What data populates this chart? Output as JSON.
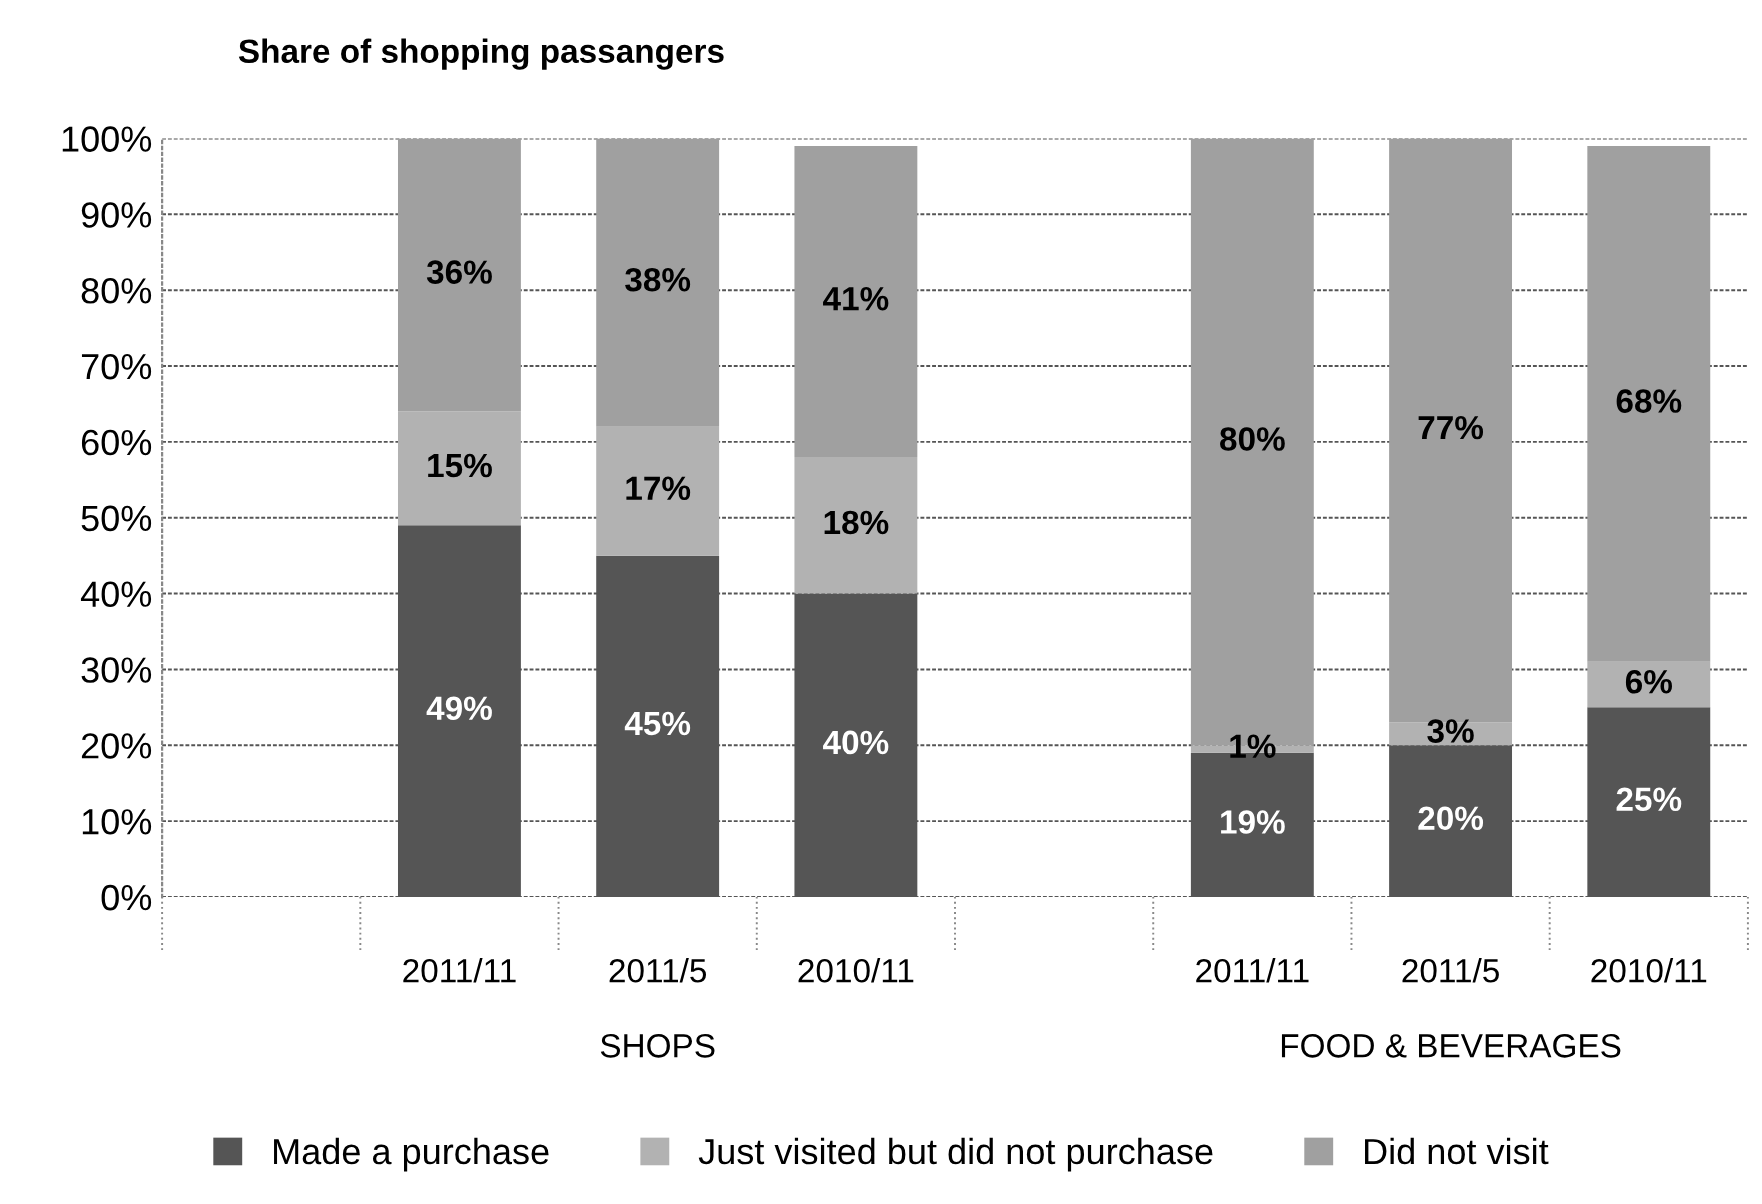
{
  "chart_data": {
    "type": "bar",
    "title": "Share of shopping passangers",
    "stacked": true,
    "categories": [
      null,
      "2011/11",
      "2011/5",
      "2010/11",
      null,
      "2011/11",
      "2011/5",
      "2010/11"
    ],
    "annotations": [
      "SHOPS",
      "FOOD & BEVERAGES"
    ],
    "series": [
      {
        "name": "Made a purchase",
        "color": "#555555",
        "values": [
          null,
          49,
          45,
          40,
          null,
          19,
          20,
          25
        ],
        "value_labels": [
          null,
          "49%",
          "45%",
          "40%",
          null,
          "19%",
          "20%",
          "25%"
        ]
      },
      {
        "name": "Just visited but did not purchase",
        "color": "#b2b2b2",
        "values": [
          null,
          15,
          17,
          18,
          null,
          1,
          3,
          6
        ],
        "value_labels": [
          null,
          "15%",
          "17%",
          "18%",
          null,
          "1%",
          "3%",
          "6%"
        ]
      },
      {
        "name": "Did not visit",
        "color": "#a0a0a0",
        "values": [
          null,
          36,
          38,
          41,
          null,
          80,
          77,
          68
        ],
        "value_labels": [
          null,
          "36%",
          "38%",
          "41%",
          null,
          "80%",
          "77%",
          "68%"
        ]
      }
    ],
    "ylim": [
      0,
      100
    ],
    "yticks": [
      {
        "value": 0,
        "label": "0%"
      },
      {
        "value": 10,
        "label": "10%"
      },
      {
        "value": 20,
        "label": "20%"
      },
      {
        "value": 30,
        "label": "30%"
      },
      {
        "value": 40,
        "label": "40%"
      },
      {
        "value": 50,
        "label": "50%"
      },
      {
        "value": 60,
        "label": "60%"
      },
      {
        "value": 70,
        "label": "70%"
      },
      {
        "value": 80,
        "label": "80%"
      },
      {
        "value": 90,
        "label": "90%"
      },
      {
        "value": 100,
        "label": "100%"
      }
    ],
    "grid": "y",
    "legend": "bottom"
  }
}
